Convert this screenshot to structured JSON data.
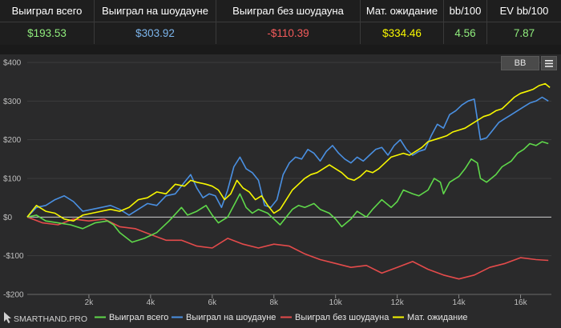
{
  "stats": {
    "headers": [
      "Выиграл всего",
      "Выиграл на шоудауне",
      "Выиграл без шоудауна",
      "Мат. ожидание",
      "bb/100",
      "EV bb/100"
    ],
    "values": [
      "$193.53",
      "$303.92",
      "-$110.39",
      "$334.46",
      "4.56",
      "7.87"
    ],
    "value_colors": [
      "#90ed7d",
      "#7cb5ec",
      "#f45b5b",
      "#f7f700",
      "#90ed7d",
      "#90ed7d"
    ]
  },
  "toolbar": {
    "bb_label": "BB",
    "menu_icon": "hamburger-menu-icon"
  },
  "watermark": {
    "text": "SMARTHAND.PRO",
    "icon": "cursor-arrow-icon"
  },
  "chart_data": {
    "type": "line",
    "xlabel": "",
    "ylabel": "",
    "xlim": [
      0,
      17000
    ],
    "ylim": [
      -200,
      400
    ],
    "x_ticks": [
      2000,
      4000,
      6000,
      8000,
      10000,
      12000,
      14000,
      16000
    ],
    "x_tick_labels": [
      "2k",
      "4k",
      "6k",
      "8k",
      "10k",
      "12k",
      "14k",
      "16k"
    ],
    "y_ticks": [
      -200,
      -100,
      0,
      100,
      200,
      300,
      400
    ],
    "y_tick_labels": [
      "-$200",
      "-$100",
      "$0",
      "$100",
      "$200",
      "$300",
      "$400"
    ],
    "grid": "horizontal",
    "legend_position": "bottom",
    "series": [
      {
        "name": "Выиграл всего",
        "color": "#5fd84a",
        "points": [
          [
            0,
            0
          ],
          [
            300,
            5
          ],
          [
            600,
            -10
          ],
          [
            1000,
            -15
          ],
          [
            1400,
            -20
          ],
          [
            1800,
            -30
          ],
          [
            2200,
            -15
          ],
          [
            2600,
            -10
          ],
          [
            2800,
            -20
          ],
          [
            3000,
            -40
          ],
          [
            3400,
            -65
          ],
          [
            3800,
            -55
          ],
          [
            4200,
            -40
          ],
          [
            4600,
            -10
          ],
          [
            5000,
            25
          ],
          [
            5200,
            5
          ],
          [
            5500,
            15
          ],
          [
            5800,
            30
          ],
          [
            6000,
            5
          ],
          [
            6200,
            -15
          ],
          [
            6500,
            0
          ],
          [
            6700,
            30
          ],
          [
            6900,
            60
          ],
          [
            7100,
            25
          ],
          [
            7300,
            10
          ],
          [
            7500,
            20
          ],
          [
            7800,
            10
          ],
          [
            8000,
            -5
          ],
          [
            8200,
            -20
          ],
          [
            8400,
            0
          ],
          [
            8600,
            20
          ],
          [
            8800,
            30
          ],
          [
            9000,
            25
          ],
          [
            9300,
            35
          ],
          [
            9500,
            20
          ],
          [
            9800,
            10
          ],
          [
            10000,
            -5
          ],
          [
            10200,
            -25
          ],
          [
            10500,
            -5
          ],
          [
            10700,
            15
          ],
          [
            11000,
            0
          ],
          [
            11200,
            20
          ],
          [
            11500,
            45
          ],
          [
            11800,
            25
          ],
          [
            12000,
            40
          ],
          [
            12200,
            70
          ],
          [
            12500,
            60
          ],
          [
            12700,
            55
          ],
          [
            13000,
            70
          ],
          [
            13200,
            100
          ],
          [
            13400,
            90
          ],
          [
            13500,
            60
          ],
          [
            13700,
            90
          ],
          [
            14000,
            105
          ],
          [
            14200,
            125
          ],
          [
            14400,
            150
          ],
          [
            14600,
            140
          ],
          [
            14700,
            100
          ],
          [
            14900,
            90
          ],
          [
            15200,
            110
          ],
          [
            15400,
            130
          ],
          [
            15700,
            145
          ],
          [
            15900,
            165
          ],
          [
            16100,
            175
          ],
          [
            16300,
            190
          ],
          [
            16500,
            185
          ],
          [
            16700,
            195
          ],
          [
            16900,
            190
          ]
        ]
      },
      {
        "name": "Выиграл на шоудауне",
        "color": "#4a90e2",
        "points": [
          [
            0,
            0
          ],
          [
            300,
            25
          ],
          [
            600,
            30
          ],
          [
            900,
            45
          ],
          [
            1200,
            55
          ],
          [
            1500,
            40
          ],
          [
            1800,
            15
          ],
          [
            2100,
            20
          ],
          [
            2400,
            25
          ],
          [
            2700,
            30
          ],
          [
            3000,
            20
          ],
          [
            3300,
            5
          ],
          [
            3600,
            20
          ],
          [
            3900,
            35
          ],
          [
            4200,
            30
          ],
          [
            4500,
            55
          ],
          [
            4800,
            60
          ],
          [
            5100,
            90
          ],
          [
            5300,
            110
          ],
          [
            5500,
            75
          ],
          [
            5700,
            50
          ],
          [
            5900,
            60
          ],
          [
            6100,
            55
          ],
          [
            6300,
            25
          ],
          [
            6500,
            70
          ],
          [
            6700,
            130
          ],
          [
            6900,
            155
          ],
          [
            7100,
            125
          ],
          [
            7300,
            115
          ],
          [
            7500,
            95
          ],
          [
            7700,
            30
          ],
          [
            7900,
            25
          ],
          [
            8100,
            45
          ],
          [
            8300,
            110
          ],
          [
            8500,
            140
          ],
          [
            8700,
            155
          ],
          [
            8900,
            150
          ],
          [
            9100,
            175
          ],
          [
            9300,
            165
          ],
          [
            9500,
            145
          ],
          [
            9700,
            170
          ],
          [
            9900,
            185
          ],
          [
            10100,
            165
          ],
          [
            10300,
            150
          ],
          [
            10500,
            140
          ],
          [
            10700,
            155
          ],
          [
            10900,
            145
          ],
          [
            11100,
            160
          ],
          [
            11300,
            175
          ],
          [
            11500,
            180
          ],
          [
            11700,
            160
          ],
          [
            11900,
            185
          ],
          [
            12100,
            200
          ],
          [
            12300,
            175
          ],
          [
            12500,
            160
          ],
          [
            12700,
            170
          ],
          [
            12900,
            175
          ],
          [
            13100,
            210
          ],
          [
            13300,
            240
          ],
          [
            13500,
            230
          ],
          [
            13700,
            265
          ],
          [
            13900,
            275
          ],
          [
            14100,
            290
          ],
          [
            14300,
            300
          ],
          [
            14500,
            305
          ],
          [
            14700,
            200
          ],
          [
            14900,
            205
          ],
          [
            15100,
            225
          ],
          [
            15300,
            245
          ],
          [
            15500,
            255
          ],
          [
            15700,
            265
          ],
          [
            15900,
            275
          ],
          [
            16100,
            285
          ],
          [
            16300,
            295
          ],
          [
            16500,
            300
          ],
          [
            16700,
            310
          ],
          [
            16900,
            300
          ]
        ]
      },
      {
        "name": "Выиграл без шоудауна",
        "color": "#e44b4b",
        "points": [
          [
            0,
            0
          ],
          [
            500,
            -15
          ],
          [
            1000,
            -20
          ],
          [
            1500,
            -5
          ],
          [
            2000,
            -10
          ],
          [
            2500,
            -5
          ],
          [
            3000,
            -25
          ],
          [
            3500,
            -30
          ],
          [
            4000,
            -45
          ],
          [
            4500,
            -60
          ],
          [
            5000,
            -60
          ],
          [
            5500,
            -75
          ],
          [
            6000,
            -80
          ],
          [
            6500,
            -55
          ],
          [
            7000,
            -70
          ],
          [
            7500,
            -80
          ],
          [
            8000,
            -70
          ],
          [
            8500,
            -75
          ],
          [
            9000,
            -95
          ],
          [
            9500,
            -110
          ],
          [
            10000,
            -120
          ],
          [
            10500,
            -130
          ],
          [
            11000,
            -125
          ],
          [
            11500,
            -145
          ],
          [
            12000,
            -130
          ],
          [
            12500,
            -115
          ],
          [
            13000,
            -135
          ],
          [
            13500,
            -150
          ],
          [
            14000,
            -160
          ],
          [
            14500,
            -150
          ],
          [
            15000,
            -130
          ],
          [
            15500,
            -120
          ],
          [
            16000,
            -105
          ],
          [
            16500,
            -110
          ],
          [
            16900,
            -112
          ]
        ]
      },
      {
        "name": "Мат. ожидание",
        "color": "#f7f700",
        "points": [
          [
            0,
            0
          ],
          [
            300,
            30
          ],
          [
            600,
            15
          ],
          [
            900,
            10
          ],
          [
            1200,
            -5
          ],
          [
            1500,
            -10
          ],
          [
            1800,
            5
          ],
          [
            2100,
            10
          ],
          [
            2400,
            15
          ],
          [
            2700,
            20
          ],
          [
            3000,
            15
          ],
          [
            3300,
            25
          ],
          [
            3600,
            45
          ],
          [
            3900,
            50
          ],
          [
            4200,
            65
          ],
          [
            4500,
            60
          ],
          [
            4800,
            85
          ],
          [
            5100,
            80
          ],
          [
            5300,
            95
          ],
          [
            5500,
            90
          ],
          [
            5800,
            85
          ],
          [
            6000,
            80
          ],
          [
            6200,
            70
          ],
          [
            6400,
            45
          ],
          [
            6600,
            60
          ],
          [
            6800,
            95
          ],
          [
            7000,
            75
          ],
          [
            7200,
            65
          ],
          [
            7400,
            45
          ],
          [
            7600,
            55
          ],
          [
            7800,
            30
          ],
          [
            8000,
            10
          ],
          [
            8200,
            20
          ],
          [
            8400,
            45
          ],
          [
            8600,
            70
          ],
          [
            8800,
            85
          ],
          [
            9000,
            100
          ],
          [
            9200,
            110
          ],
          [
            9400,
            115
          ],
          [
            9600,
            125
          ],
          [
            9800,
            135
          ],
          [
            10000,
            125
          ],
          [
            10200,
            115
          ],
          [
            10400,
            100
          ],
          [
            10600,
            95
          ],
          [
            10800,
            105
          ],
          [
            11000,
            120
          ],
          [
            11200,
            115
          ],
          [
            11400,
            125
          ],
          [
            11600,
            140
          ],
          [
            11800,
            155
          ],
          [
            12000,
            160
          ],
          [
            12200,
            165
          ],
          [
            12400,
            160
          ],
          [
            12600,
            170
          ],
          [
            12800,
            180
          ],
          [
            13000,
            195
          ],
          [
            13200,
            200
          ],
          [
            13400,
            205
          ],
          [
            13600,
            210
          ],
          [
            13800,
            220
          ],
          [
            14000,
            225
          ],
          [
            14200,
            230
          ],
          [
            14400,
            240
          ],
          [
            14600,
            250
          ],
          [
            14800,
            260
          ],
          [
            15000,
            265
          ],
          [
            15200,
            275
          ],
          [
            15400,
            280
          ],
          [
            15600,
            295
          ],
          [
            15800,
            310
          ],
          [
            16000,
            320
          ],
          [
            16200,
            325
          ],
          [
            16400,
            330
          ],
          [
            16600,
            340
          ],
          [
            16800,
            345
          ],
          [
            16950,
            335
          ]
        ]
      }
    ]
  }
}
